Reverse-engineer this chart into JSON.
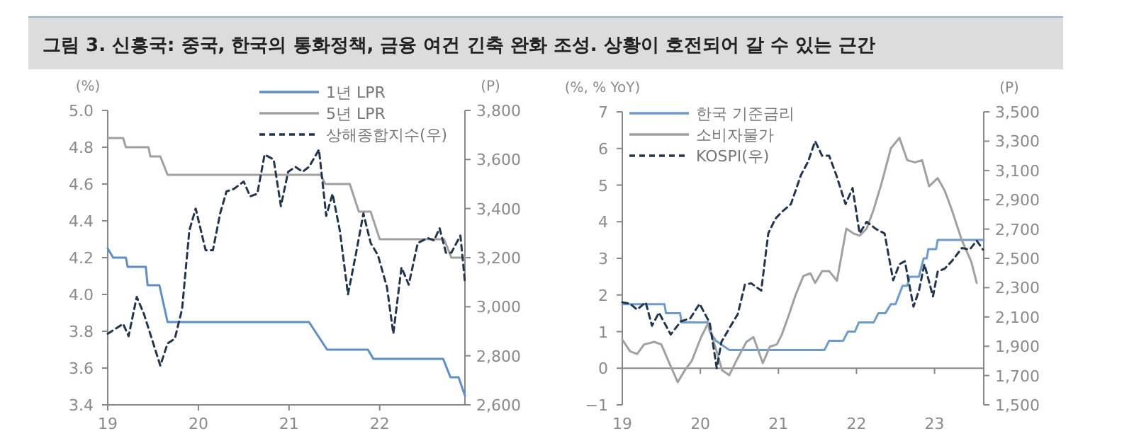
{
  "chart_data": [
    {
      "type": "line",
      "title": "그림 3.  신흥국: 중국, 한국의 통화정책, 금융 여건 긴축 완화 조성. 상황이 호전되어 갈 수 있는 근간",
      "ylabel": "(%)",
      "y2label": "(P)",
      "legend": "top right",
      "xlim": [
        2019,
        2022.94
      ],
      "xticks": [
        {
          "value": 2019,
          "label": "19"
        },
        {
          "value": 2020,
          "label": "20"
        },
        {
          "value": 2021,
          "label": "21"
        },
        {
          "value": 2022,
          "label": "22"
        }
      ],
      "ylim": [
        3.4,
        5.0
      ],
      "yticks": [
        {
          "value": 3.4,
          "label": "3.4"
        },
        {
          "value": 3.6,
          "label": "3.6"
        },
        {
          "value": 3.8,
          "label": "3.8"
        },
        {
          "value": 4.0,
          "label": "4.0"
        },
        {
          "value": 4.2,
          "label": "4.2"
        },
        {
          "value": 4.4,
          "label": "4.4"
        },
        {
          "value": 4.6,
          "label": "4.6"
        },
        {
          "value": 4.8,
          "label": "4.8"
        },
        {
          "value": 5.0,
          "label": "5.0"
        }
      ],
      "y2lim": [
        2600,
        3800
      ],
      "y2ticks": [
        {
          "value": 2600,
          "label": "2,600"
        },
        {
          "value": 2800,
          "label": "2,800"
        },
        {
          "value": 3000,
          "label": "3,000"
        },
        {
          "value": 3200,
          "label": "3,200"
        },
        {
          "value": 3400,
          "label": "3,400"
        },
        {
          "value": 3600,
          "label": "3,600"
        },
        {
          "value": 3800,
          "label": "3,800"
        }
      ],
      "series": [
        {
          "name": "1년 LPR",
          "color": "#5b8fc9",
          "x": [
            2019.0,
            2019.06,
            2019.2,
            2019.22,
            2019.42,
            2019.44,
            2019.57,
            2019.66,
            2021.22,
            2021.42,
            2021.87,
            2021.93,
            2022.7,
            2022.78,
            2022.87,
            2022.94
          ],
          "values": [
            4.25,
            4.2,
            4.2,
            4.15,
            4.15,
            4.05,
            4.05,
            3.85,
            3.85,
            3.7,
            3.7,
            3.65,
            3.65,
            3.55,
            3.55,
            3.45
          ]
        },
        {
          "name": "5년 LPR",
          "color": "#a0a0a0",
          "x": [
            2019.0,
            2019.17,
            2019.2,
            2019.45,
            2019.47,
            2019.58,
            2019.66,
            2021.35,
            2021.4,
            2021.67,
            2021.77,
            2021.9,
            2022.0,
            2022.71,
            2022.79,
            2022.94
          ],
          "values": [
            4.85,
            4.85,
            4.8,
            4.8,
            4.75,
            4.75,
            4.65,
            4.65,
            4.6,
            4.6,
            4.45,
            4.45,
            4.3,
            4.3,
            4.2,
            4.2
          ]
        },
        {
          "name": "상해종합지수(우)",
          "color": "#1f3550",
          "axis": "y2",
          "line_style": "dashed",
          "x": [
            2019.0,
            2019.17,
            2019.23,
            2019.32,
            2019.4,
            2019.58,
            2019.66,
            2019.74,
            2019.82,
            2019.9,
            2019.97,
            2020.08,
            2020.16,
            2020.24,
            2020.31,
            2020.39,
            2020.5,
            2020.57,
            2020.65,
            2020.73,
            2020.83,
            2020.91,
            2020.99,
            2021.07,
            2021.15,
            2021.22,
            2021.33,
            2021.41,
            2021.48,
            2021.56,
            2021.65,
            2021.74,
            2021.82,
            2021.9,
            2021.98,
            2022.08,
            2022.15,
            2022.24,
            2022.32,
            2022.42,
            2022.53,
            2022.6,
            2022.66,
            2022.73,
            2022.79,
            2022.89,
            2022.94
          ],
          "values": [
            2890,
            2930,
            2880,
            3040,
            2970,
            2760,
            2850,
            2870,
            2990,
            3310,
            3400,
            3230,
            3230,
            3380,
            3470,
            3480,
            3510,
            3450,
            3460,
            3620,
            3600,
            3410,
            3550,
            3570,
            3550,
            3570,
            3640,
            3370,
            3460,
            3310,
            3050,
            3220,
            3380,
            3260,
            3210,
            3080,
            2890,
            3160,
            3090,
            3260,
            3280,
            3270,
            3320,
            3220,
            3220,
            3290,
            3100
          ]
        }
      ]
    },
    {
      "type": "line",
      "ylabel": "(%, % YoY)",
      "y2label": "(P)",
      "legend": "top left",
      "xlim": [
        2019,
        2023.63
      ],
      "xticks": [
        {
          "value": 2019,
          "label": "19"
        },
        {
          "value": 2020,
          "label": "20"
        },
        {
          "value": 2021,
          "label": "21"
        },
        {
          "value": 2022,
          "label": "22"
        },
        {
          "value": 2023,
          "label": "23"
        }
      ],
      "ylim": [
        -1,
        7
      ],
      "yticks": [
        {
          "value": -1,
          "label": "−1"
        },
        0,
        1,
        2,
        3,
        4,
        5,
        6,
        7
      ],
      "y2lim": [
        1500,
        3500
      ],
      "y2ticks": [
        {
          "value": 1500,
          "label": "1,500"
        },
        {
          "value": 1700,
          "label": "1,700"
        },
        {
          "value": 1900,
          "label": "1,900"
        },
        {
          "value": 2100,
          "label": "2,100"
        },
        {
          "value": 2300,
          "label": "2,300"
        },
        {
          "value": 2500,
          "label": "2,500"
        },
        {
          "value": 2700,
          "label": "2,700"
        },
        {
          "value": 2900,
          "label": "2,900"
        },
        {
          "value": 3100,
          "label": "3,100"
        },
        {
          "value": 3300,
          "label": "3,300"
        },
        {
          "value": 3500,
          "label": "3,500"
        }
      ],
      "series": [
        {
          "name": "한국 기준금리",
          "color": "#6a9bd1",
          "x": [
            2019.0,
            2019.54,
            2019.56,
            2019.74,
            2019.76,
            2020.1,
            2020.12,
            2020.2,
            2020.37,
            2021.59,
            2021.65,
            2021.83,
            2021.89,
            2021.98,
            2022.03,
            2022.22,
            2022.28,
            2022.37,
            2022.44,
            2022.5,
            2022.59,
            2022.65,
            2022.68,
            2022.8,
            2022.86,
            2022.9,
            2022.92,
            2023.02,
            2023.04,
            2023.63
          ],
          "values": [
            1.75,
            1.75,
            1.5,
            1.5,
            1.25,
            1.25,
            1.0,
            0.75,
            0.5,
            0.5,
            0.75,
            0.75,
            1.0,
            1.0,
            1.25,
            1.25,
            1.5,
            1.5,
            1.75,
            1.75,
            2.25,
            2.25,
            2.5,
            2.5,
            3.0,
            3.0,
            3.25,
            3.25,
            3.5,
            3.5
          ]
        },
        {
          "name": "소비자물가",
          "color": "#a0a0a0",
          "x": [
            2019.0,
            2019.1,
            2019.19,
            2019.28,
            2019.41,
            2019.5,
            2019.59,
            2019.71,
            2019.8,
            2019.89,
            2020.01,
            2020.1,
            2020.19,
            2020.28,
            2020.37,
            2020.46,
            2020.59,
            2020.68,
            2020.8,
            2020.89,
            2020.98,
            2021.04,
            2021.13,
            2021.22,
            2021.32,
            2021.41,
            2021.47,
            2021.56,
            2021.65,
            2021.75,
            2021.87,
            2021.96,
            2022.04,
            2022.13,
            2022.22,
            2022.32,
            2022.44,
            2022.55,
            2022.65,
            2022.75,
            2022.84,
            2022.93,
            2023.04,
            2023.13,
            2023.22,
            2023.35,
            2023.47,
            2023.54
          ],
          "values": [
            0.78,
            0.46,
            0.39,
            0.65,
            0.72,
            0.65,
            0.2,
            -0.38,
            -0.06,
            0.2,
            0.85,
            1.23,
            0.59,
            -0.06,
            -0.19,
            0.2,
            0.72,
            0.85,
            0.14,
            0.59,
            0.65,
            0.9,
            1.43,
            2.0,
            2.52,
            2.59,
            2.33,
            2.65,
            2.65,
            2.39,
            3.81,
            3.68,
            3.62,
            3.81,
            4.33,
            5.04,
            6.0,
            6.29,
            5.68,
            5.62,
            5.68,
            4.97,
            5.19,
            4.85,
            4.33,
            3.49,
            2.91,
            2.33
          ]
        },
        {
          "name": "KOSPI(우)",
          "color": "#1f3550",
          "axis": "y2",
          "line_style": "dashed",
          "x": [
            2019.0,
            2019.1,
            2019.19,
            2019.3,
            2019.38,
            2019.47,
            2019.62,
            2019.75,
            2019.87,
            2019.99,
            2020.12,
            2020.21,
            2020.27,
            2020.39,
            2020.48,
            2020.57,
            2020.65,
            2020.78,
            2020.87,
            2020.96,
            2021.05,
            2021.16,
            2021.29,
            2021.38,
            2021.47,
            2021.56,
            2021.65,
            2021.74,
            2021.86,
            2021.95,
            2022.04,
            2022.13,
            2022.25,
            2022.36,
            2022.47,
            2022.55,
            2022.62,
            2022.73,
            2022.8,
            2022.87,
            2022.98,
            2023.04,
            2023.13,
            2023.22,
            2023.35,
            2023.45,
            2023.54,
            2023.62
          ],
          "values": [
            2200,
            2190,
            2150,
            2200,
            2040,
            2130,
            1980,
            2070,
            2090,
            2190,
            2060,
            1750,
            1930,
            2040,
            2120,
            2320,
            2330,
            2280,
            2670,
            2770,
            2820,
            2870,
            3070,
            3160,
            3300,
            3200,
            3200,
            3070,
            2870,
            2980,
            2670,
            2750,
            2700,
            2670,
            2350,
            2460,
            2480,
            2170,
            2280,
            2460,
            2240,
            2410,
            2430,
            2480,
            2570,
            2560,
            2620,
            2560
          ]
        }
      ]
    }
  ]
}
